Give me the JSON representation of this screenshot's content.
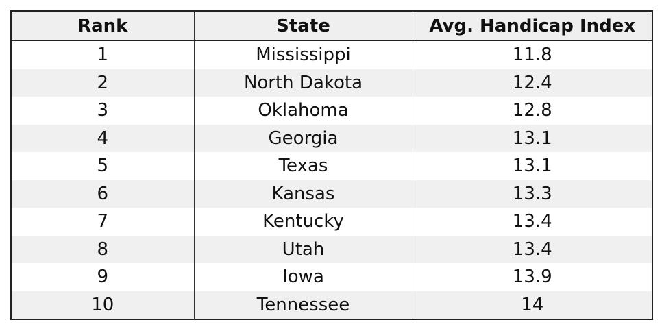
{
  "table": {
    "header": [
      "Rank",
      "State",
      "Avg. Handicap Index"
    ],
    "rows": [
      [
        "1",
        "Mississippi",
        "11.8"
      ],
      [
        "2",
        "North Dakota",
        "12.4"
      ],
      [
        "3",
        "Oklahoma",
        "12.8"
      ],
      [
        "4",
        "Georgia",
        "13.1"
      ],
      [
        "5",
        "Texas",
        "13.1"
      ],
      [
        "6",
        "Kansas",
        "13.3"
      ],
      [
        "7",
        "Kentucky",
        "13.4"
      ],
      [
        "8",
        "Utah",
        "13.4"
      ],
      [
        "9",
        "Iowa",
        "13.9"
      ],
      [
        "10",
        "Tennessee",
        "14"
      ]
    ]
  }
}
